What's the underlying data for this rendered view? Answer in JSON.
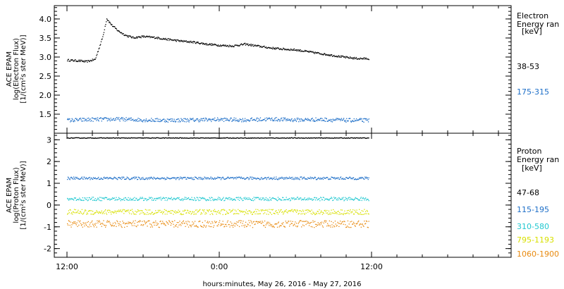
{
  "chart_data": [
    {
      "type": "scatter",
      "ylabel_lines": [
        "ACE EPAM",
        "log(Electron Flux)",
        "[1/(cm²s ster MeV)]"
      ],
      "ylim": [
        1.0,
        4.35
      ],
      "yticks": [
        1.5,
        2.0,
        2.5,
        3.0,
        3.5,
        4.0
      ],
      "ytick_labels": [
        "1.5",
        "2.0",
        "2.5",
        "3.0",
        "3.5",
        "4.0"
      ],
      "legend_title": [
        "Electron",
        "Energy ran",
        "[keV]"
      ],
      "series": [
        {
          "name": "38-53",
          "color": "#000000",
          "x_hours": [
            0,
            1,
            1.5,
            2.2,
            2.8,
            3.1,
            3.5,
            4.0,
            4.6,
            5.2,
            6,
            7,
            8,
            9,
            10,
            11,
            12,
            13,
            14,
            15,
            16,
            17,
            18,
            19,
            20,
            21,
            22,
            23,
            23.8
          ],
          "y": [
            2.93,
            2.91,
            2.89,
            2.95,
            3.55,
            4.02,
            3.85,
            3.7,
            3.58,
            3.52,
            3.55,
            3.52,
            3.47,
            3.43,
            3.4,
            3.35,
            3.32,
            3.3,
            3.35,
            3.3,
            3.25,
            3.22,
            3.2,
            3.15,
            3.1,
            3.05,
            3.0,
            2.97,
            2.97
          ]
        },
        {
          "name": "175-315",
          "color": "#1e6fc8",
          "x_hours": [
            0,
            2,
            4,
            6,
            8,
            10,
            12,
            14,
            16,
            18,
            20,
            22,
            23.8
          ],
          "y": [
            1.35,
            1.37,
            1.38,
            1.36,
            1.35,
            1.36,
            1.37,
            1.36,
            1.38,
            1.36,
            1.37,
            1.35,
            1.35
          ]
        }
      ]
    },
    {
      "type": "scatter",
      "ylabel_lines": [
        "ACE EPAM",
        "log(Proton Flux)",
        "[1/(cm²s ster MeV)]"
      ],
      "ylim": [
        -2.4,
        3.3
      ],
      "yticks": [
        -2,
        -1,
        0,
        1,
        2,
        3
      ],
      "ytick_labels": [
        "-2",
        "-1",
        "0",
        "1",
        "2",
        "3"
      ],
      "legend_title": [
        "Proton",
        "Energy ran",
        "[keV]"
      ],
      "series": [
        {
          "name": "47-68",
          "color": "#000000",
          "x_hours": [
            0,
            23.8
          ],
          "y": [
            3.1,
            3.1
          ]
        },
        {
          "name": "115-195",
          "color": "#1e6fc8",
          "x_hours": [
            0,
            23.8
          ],
          "y": [
            1.25,
            1.25
          ]
        },
        {
          "name": "310-580",
          "color": "#22c8d0",
          "x_hours": [
            0,
            23.8
          ],
          "y": [
            0.3,
            0.3
          ]
        },
        {
          "name": "795-1193",
          "color": "#d8e000",
          "x_hours": [
            0,
            23.8
          ],
          "y": [
            -0.3,
            -0.3
          ]
        },
        {
          "name": "1060-1900",
          "color": "#e88a10",
          "x_hours": [
            0,
            23.8
          ],
          "y": [
            -0.85,
            -0.85
          ]
        }
      ]
    }
  ],
  "xaxis": {
    "xlim_hours": [
      -1,
      35
    ],
    "ticks": [
      {
        "h": 0,
        "label": "12:00"
      },
      {
        "h": 12,
        "label": "0:00"
      },
      {
        "h": 24,
        "label": "12:00"
      }
    ],
    "minor_step_hours": 2,
    "xlabel": "hours:minutes, May 26, 2016 - May 27, 2016"
  }
}
